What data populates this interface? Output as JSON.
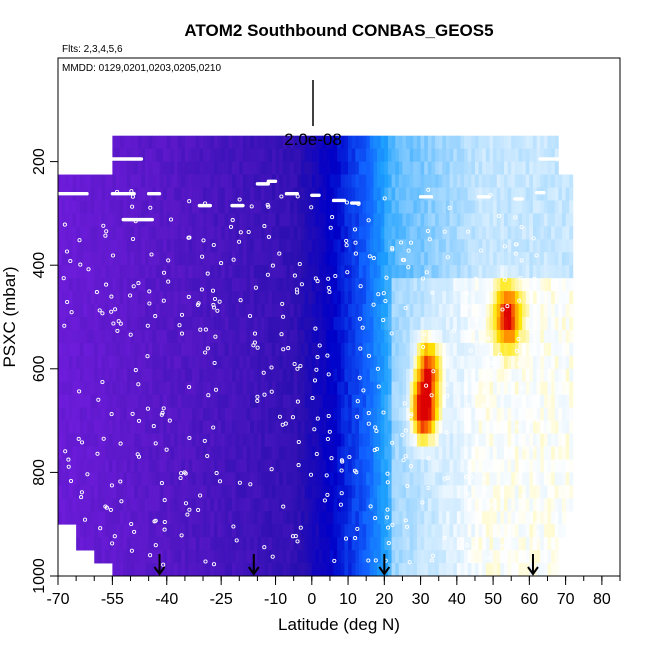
{
  "chart_data": {
    "type": "heatmap",
    "title": "ATOM2 Southbound CONBAS_GEOS5",
    "flights_label": "Flts: 2,3,4,5,6",
    "dates_label": "MMDD: 0129,0201,0203,0205,0210",
    "xlabel": "Latitude (deg N)",
    "ylabel": "PSXC (mbar)",
    "xlim": [
      -70,
      85
    ],
    "ylim": [
      1000,
      0
    ],
    "x_ticks": [
      -70,
      -55,
      -40,
      -25,
      -10,
      0,
      10,
      20,
      30,
      40,
      50,
      60,
      70,
      80
    ],
    "y_ticks": [
      200,
      400,
      600,
      800,
      1000
    ],
    "scale_label": "2.0e-08",
    "colormap": [
      "#7a1fe6",
      "#5a18c8",
      "#2a0fb0",
      "#0000c8",
      "#1060ff",
      "#1da0ff",
      "#9fd6ff",
      "#ffffff",
      "#ffe600",
      "#ff7a00",
      "#dd0000"
    ],
    "profile_markers_lat": [
      -42,
      -16,
      20,
      61
    ],
    "hotspots": [
      {
        "lat": 31,
        "pressure": 680,
        "intensity": 1.0
      },
      {
        "lat": 54,
        "pressure": 500,
        "intensity": 0.75
      },
      {
        "lat": 32,
        "pressure": 600,
        "intensity": 0.7
      }
    ]
  }
}
